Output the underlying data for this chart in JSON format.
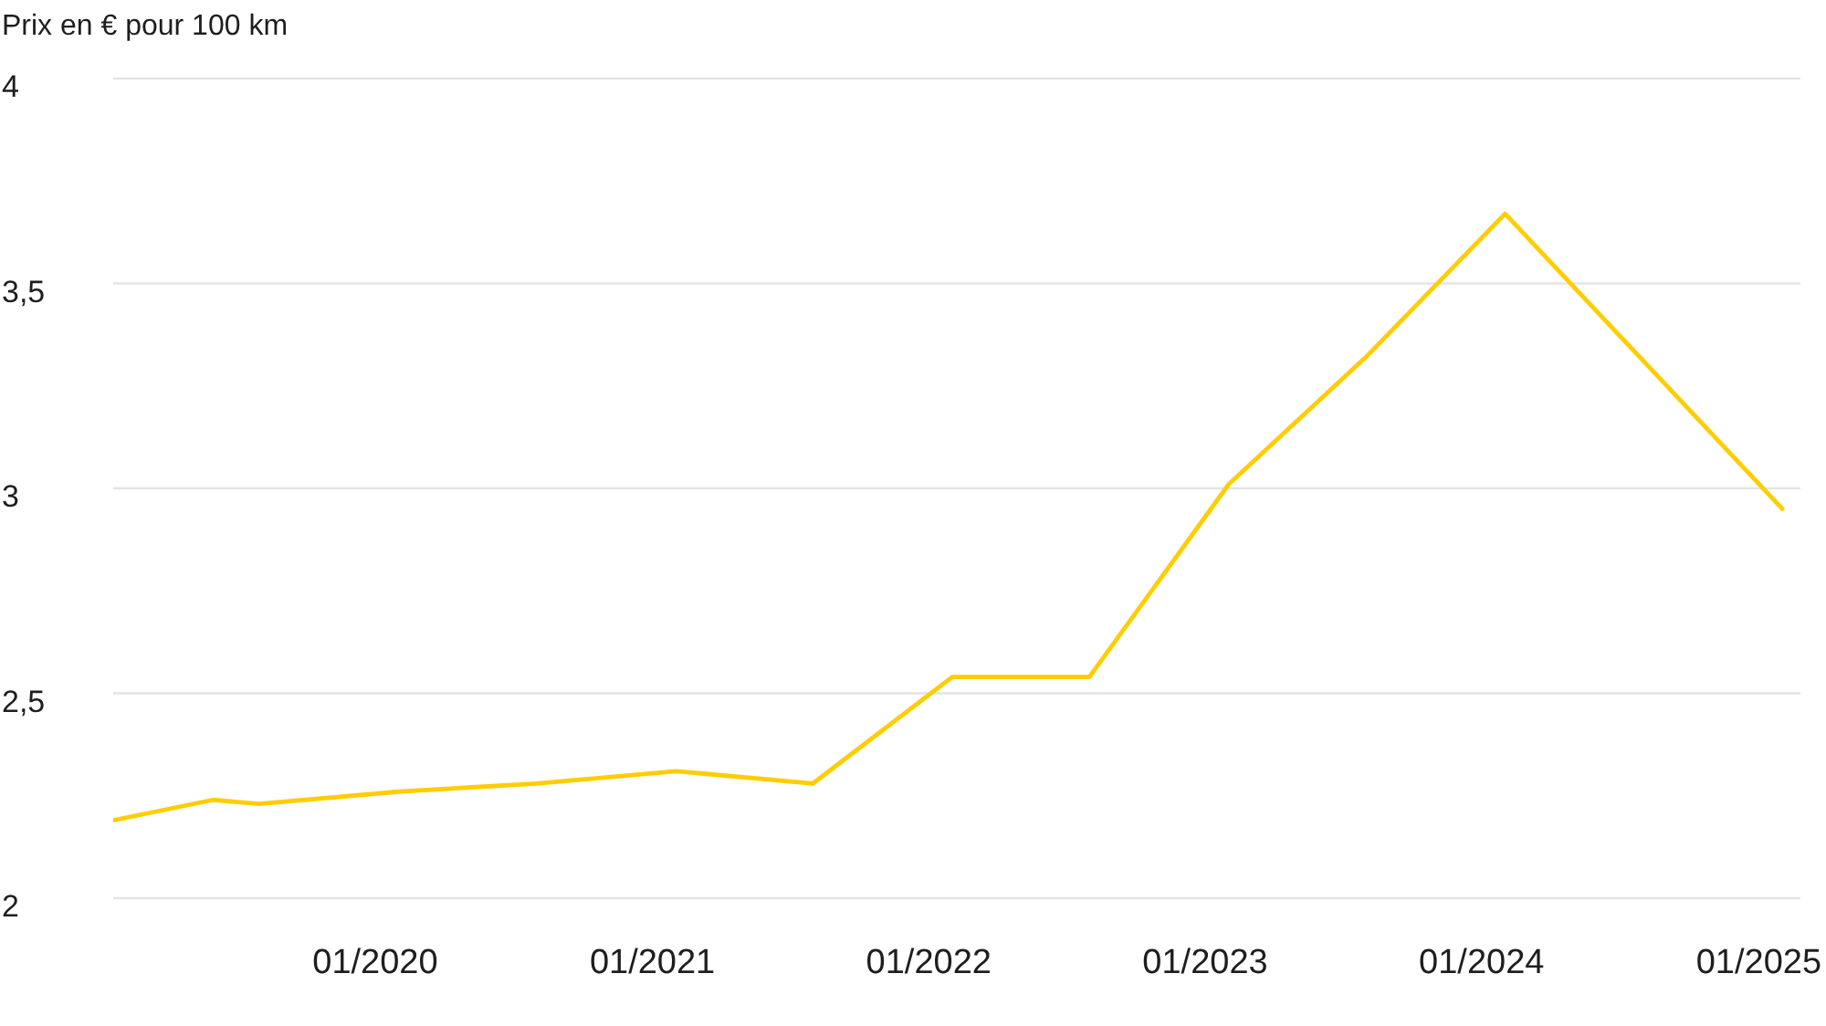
{
  "chart_data": {
    "type": "line",
    "ylabel": "Prix en € pour 100 km",
    "x": [
      "2019-01-20",
      "2019-06",
      "2019-08",
      "2020-02",
      "2020-08",
      "2021-02",
      "2021-08",
      "2022-02",
      "2022-08",
      "2023-02",
      "2023-08",
      "2024-02",
      "2025-02"
    ],
    "values": [
      2.19,
      2.24,
      2.23,
      2.26,
      2.28,
      2.31,
      2.28,
      2.54,
      2.54,
      3.01,
      3.32,
      3.67,
      2.95
    ],
    "color": "#ffcd00",
    "xlim": [
      "2019-01-20",
      "2025-02-25"
    ],
    "xticks": [
      {
        "value": "2020-01",
        "label": "01/2020"
      },
      {
        "value": "2021-01",
        "label": "01/2021"
      },
      {
        "value": "2022-01",
        "label": "01/2022"
      },
      {
        "value": "2023-01",
        "label": "01/2023"
      },
      {
        "value": "2024-01",
        "label": "01/2024"
      },
      {
        "value": "2025-01",
        "label": "01/2025"
      }
    ],
    "ylim": [
      2,
      4
    ],
    "yticks": [
      2,
      {
        "value": 2.5,
        "label": "2,5"
      },
      3,
      {
        "value": 3.5,
        "label": "3,5"
      },
      4
    ],
    "grid": "y"
  }
}
